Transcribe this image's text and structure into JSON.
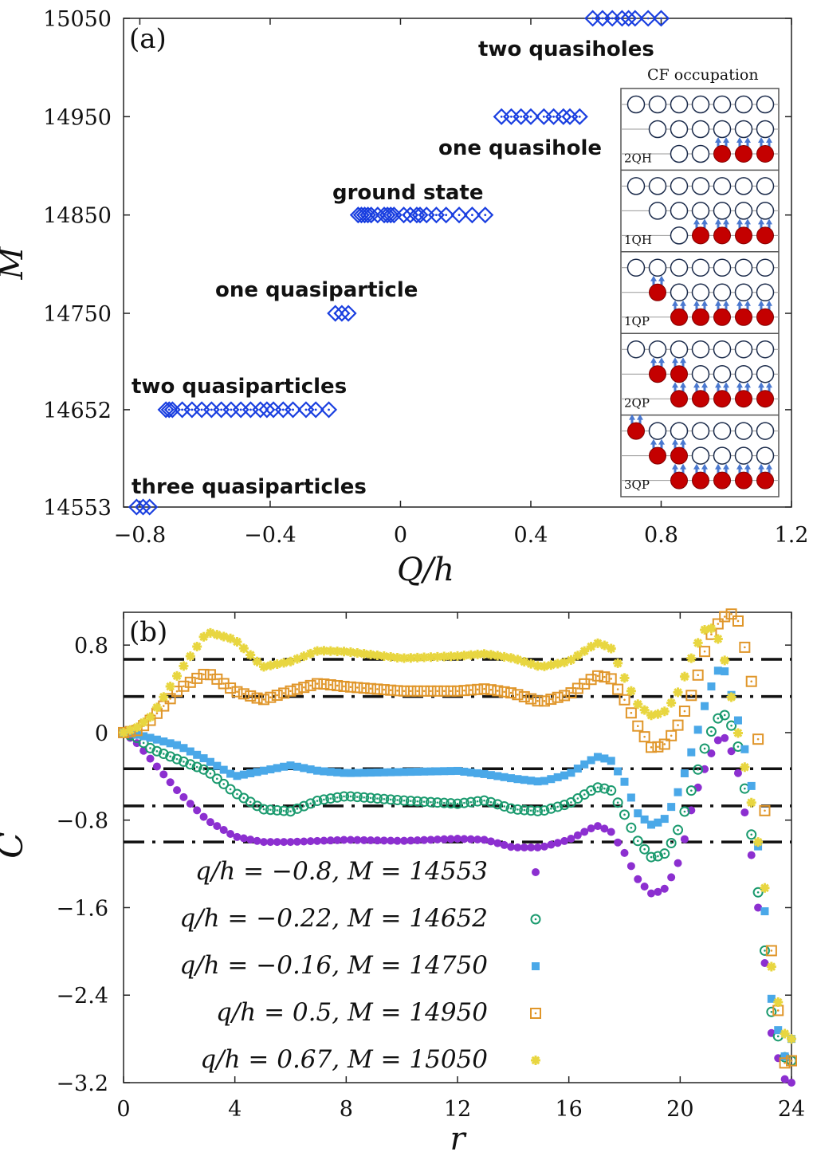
{
  "panel_a": {
    "tag": "(a)",
    "annotations": {
      "two_quasiholes": "two quasiholes",
      "one_quasihole": "one quasihole",
      "ground_state": "ground state",
      "one_quasiparticle": "one quasiparticle",
      "two_quasiparticles": "two quasiparticles",
      "three_quasiparticles": "three quasiparticles"
    },
    "inset": {
      "title": "CF occupation",
      "blocks": [
        {
          "label": "2QH",
          "rows": [
            [
              0,
              0,
              0,
              0,
              0,
              0,
              0
            ],
            [
              null,
              0,
              0,
              0,
              0,
              0,
              0
            ],
            [
              null,
              null,
              0,
              0,
              1,
              1,
              1
            ]
          ]
        },
        {
          "label": "1QH",
          "rows": [
            [
              0,
              0,
              0,
              0,
              0,
              0,
              0
            ],
            [
              null,
              0,
              0,
              0,
              0,
              0,
              0
            ],
            [
              null,
              null,
              0,
              1,
              1,
              1,
              1
            ]
          ]
        },
        {
          "label": "1QP",
          "rows": [
            [
              0,
              0,
              0,
              0,
              0,
              0,
              0
            ],
            [
              null,
              1,
              0,
              0,
              0,
              0,
              0
            ],
            [
              null,
              null,
              1,
              1,
              1,
              1,
              1
            ]
          ]
        },
        {
          "label": "2QP",
          "rows": [
            [
              0,
              0,
              0,
              0,
              0,
              0,
              0
            ],
            [
              null,
              1,
              1,
              0,
              0,
              0,
              0
            ],
            [
              null,
              null,
              1,
              1,
              1,
              1,
              1
            ]
          ]
        },
        {
          "label": "3QP",
          "rows": [
            [
              1,
              0,
              0,
              0,
              0,
              0,
              0
            ],
            [
              null,
              1,
              1,
              0,
              0,
              0,
              0
            ],
            [
              null,
              null,
              1,
              1,
              1,
              1,
              1
            ]
          ]
        }
      ]
    }
  },
  "panel_b": {
    "tag": "(b)",
    "legend": [
      {
        "label": "q/h = −0.8, M = 14553"
      },
      {
        "label": "q/h = −0.22, M = 14652"
      },
      {
        "label": "q/h = −0.16, M = 14750"
      },
      {
        "label": "q/h = 0.5, M = 14950"
      },
      {
        "label": "q/h = 0.67, M = 15050"
      }
    ]
  },
  "chart_data": [
    {
      "type": "scatter",
      "title": "",
      "xlabel": "Q/h",
      "ylabel": "M",
      "xlim": [
        -0.85,
        1.2
      ],
      "ylim": [
        14553,
        15050
      ],
      "xticks": [
        "−0.8",
        "−0.4",
        "0",
        "0.4",
        "0.8",
        "1.2"
      ],
      "yticks": [
        "14553",
        "14652",
        "14750",
        "14850",
        "14950",
        "15050"
      ],
      "ytick_values": [
        14553,
        14652,
        14750,
        14850,
        14950,
        15050
      ],
      "marker_color": "#1a3fe0",
      "series": [
        {
          "name": "three quasiparticles",
          "M": 14553,
          "Q": [
            -0.81,
            -0.79,
            -0.77
          ]
        },
        {
          "name": "two quasiparticles",
          "M": 14652,
          "Q": [
            -0.72,
            -0.71,
            -0.7,
            -0.67,
            -0.64,
            -0.61,
            -0.58,
            -0.55,
            -0.52,
            -0.49,
            -0.46,
            -0.43,
            -0.41,
            -0.39,
            -0.36,
            -0.33,
            -0.29,
            -0.26,
            -0.22
          ]
        },
        {
          "name": "one quasiparticle",
          "M": 14750,
          "Q": [
            -0.2,
            -0.18,
            -0.16
          ]
        },
        {
          "name": "ground state",
          "M": 14850,
          "Q": [
            -0.13,
            -0.12,
            -0.11,
            -0.1,
            -0.09,
            -0.07,
            -0.05,
            -0.04,
            -0.03,
            -0.02,
            0.01,
            0.03,
            0.05,
            0.06,
            0.08,
            0.11,
            0.14,
            0.18,
            0.22,
            0.26
          ]
        },
        {
          "name": "one quasihole",
          "M": 14950,
          "Q": [
            0.31,
            0.34,
            0.37,
            0.4,
            0.44,
            0.47,
            0.5,
            0.52,
            0.55
          ]
        },
        {
          "name": "two quasiholes",
          "M": 15050,
          "Q": [
            0.59,
            0.62,
            0.65,
            0.68,
            0.7,
            0.72,
            0.76,
            0.8
          ]
        }
      ]
    },
    {
      "type": "scatter",
      "title": "",
      "xlabel": "r",
      "ylabel": "C",
      "xlim": [
        0,
        24
      ],
      "ylim": [
        -3.2,
        1.1
      ],
      "xticks": [
        "0",
        "4",
        "8",
        "12",
        "16",
        "20",
        "24"
      ],
      "yticks": [
        "0.8",
        "0",
        "−0.8",
        "−1.6",
        "−2.4",
        "−3.2"
      ],
      "ytick_values": [
        0.8,
        0,
        -0.8,
        -1.6,
        -2.4,
        -3.2
      ],
      "reference_lines": [
        0.67,
        0.33,
        -0.33,
        -0.67,
        -1.0
      ],
      "series": [
        {
          "name": "q/h = −0.8, M = 14553",
          "color": "#8c2fd0",
          "marker": "circle",
          "points": [
            [
              0,
              0
            ],
            [
              0.5,
              -0.1
            ],
            [
              1,
              -0.25
            ],
            [
              2,
              -0.55
            ],
            [
              3,
              -0.8
            ],
            [
              4,
              -0.95
            ],
            [
              5,
              -1.0
            ],
            [
              6,
              -1.0
            ],
            [
              8,
              -0.98
            ],
            [
              10,
              -0.99
            ],
            [
              12,
              -0.97
            ],
            [
              13,
              -0.98
            ],
            [
              14,
              -1.05
            ],
            [
              15,
              -1.05
            ],
            [
              16,
              -0.98
            ],
            [
              17,
              -0.85
            ],
            [
              17.5,
              -0.9
            ],
            [
              18,
              -1.1
            ],
            [
              18.5,
              -1.35
            ],
            [
              19,
              -1.48
            ],
            [
              19.5,
              -1.42
            ],
            [
              20,
              -1.15
            ],
            [
              20.5,
              -0.6
            ],
            [
              21,
              -0.25
            ],
            [
              21.5,
              0
            ],
            [
              22,
              -0.25
            ],
            [
              22.5,
              -1.0
            ],
            [
              23,
              -2.0
            ],
            [
              23.3,
              -2.8
            ],
            [
              23.8,
              -3.2
            ],
            [
              24,
              -3.2
            ]
          ]
        },
        {
          "name": "q/h = −0.22, M = 14652",
          "color": "#1a9a6e",
          "marker": "circle-open-dot",
          "points": [
            [
              0,
              0
            ],
            [
              0.5,
              -0.05
            ],
            [
              1,
              -0.15
            ],
            [
              2,
              -0.25
            ],
            [
              3,
              -0.35
            ],
            [
              4,
              -0.55
            ],
            [
              5,
              -0.7
            ],
            [
              6,
              -0.72
            ],
            [
              7,
              -0.62
            ],
            [
              8,
              -0.58
            ],
            [
              10,
              -0.62
            ],
            [
              12,
              -0.65
            ],
            [
              13,
              -0.62
            ],
            [
              14,
              -0.7
            ],
            [
              15,
              -0.72
            ],
            [
              16,
              -0.65
            ],
            [
              17,
              -0.5
            ],
            [
              17.5,
              -0.52
            ],
            [
              18,
              -0.75
            ],
            [
              18.5,
              -1.0
            ],
            [
              19,
              -1.15
            ],
            [
              19.5,
              -1.1
            ],
            [
              20,
              -0.85
            ],
            [
              20.5,
              -0.45
            ],
            [
              21,
              -0.05
            ],
            [
              21.5,
              0.2
            ],
            [
              22,
              0.0
            ],
            [
              22.5,
              -0.8
            ],
            [
              23,
              -1.9
            ],
            [
              23.3,
              -2.6
            ],
            [
              23.8,
              -3.0
            ],
            [
              24,
              -3.0
            ]
          ]
        },
        {
          "name": "q/h = −0.16, M = 14750",
          "color": "#4aa8e8",
          "marker": "square",
          "points": [
            [
              0,
              0
            ],
            [
              0.5,
              -0.02
            ],
            [
              1,
              -0.05
            ],
            [
              2,
              -0.12
            ],
            [
              3,
              -0.25
            ],
            [
              4,
              -0.4
            ],
            [
              5,
              -0.35
            ],
            [
              6,
              -0.3
            ],
            [
              7,
              -0.35
            ],
            [
              8,
              -0.37
            ],
            [
              10,
              -0.36
            ],
            [
              12,
              -0.35
            ],
            [
              13,
              -0.38
            ],
            [
              14,
              -0.42
            ],
            [
              15,
              -0.45
            ],
            [
              16,
              -0.38
            ],
            [
              17,
              -0.22
            ],
            [
              17.5,
              -0.25
            ],
            [
              18,
              -0.45
            ],
            [
              18.5,
              -0.75
            ],
            [
              19,
              -0.85
            ],
            [
              19.5,
              -0.78
            ],
            [
              20,
              -0.5
            ],
            [
              20.5,
              -0.1
            ],
            [
              21,
              0.35
            ],
            [
              21.5,
              0.65
            ],
            [
              22,
              0.2
            ],
            [
              22.5,
              -0.35
            ],
            [
              23,
              -1.5
            ],
            [
              23.3,
              -2.5
            ],
            [
              23.8,
              -3.0
            ],
            [
              24,
              -2.8
            ]
          ]
        },
        {
          "name": "q/h = 0.5, M = 14950",
          "color": "#e0962a",
          "marker": "square-open-dot",
          "points": [
            [
              0,
              0
            ],
            [
              0.5,
              0.02
            ],
            [
              1,
              0.12
            ],
            [
              2,
              0.4
            ],
            [
              3,
              0.55
            ],
            [
              4,
              0.38
            ],
            [
              5,
              0.3
            ],
            [
              6,
              0.38
            ],
            [
              7,
              0.45
            ],
            [
              8,
              0.42
            ],
            [
              10,
              0.38
            ],
            [
              12,
              0.38
            ],
            [
              13,
              0.4
            ],
            [
              14,
              0.36
            ],
            [
              15,
              0.28
            ],
            [
              16,
              0.35
            ],
            [
              17,
              0.52
            ],
            [
              17.5,
              0.5
            ],
            [
              18,
              0.3
            ],
            [
              18.5,
              0.05
            ],
            [
              19,
              -0.15
            ],
            [
              19.5,
              -0.1
            ],
            [
              20,
              0.1
            ],
            [
              20.5,
              0.4
            ],
            [
              21,
              0.85
            ],
            [
              21.5,
              1.05
            ],
            [
              22,
              1.1
            ],
            [
              22.5,
              0.6
            ],
            [
              23,
              -0.5
            ],
            [
              23.3,
              -2.1
            ],
            [
              23.8,
              -3.1
            ],
            [
              24,
              -3.0
            ]
          ]
        },
        {
          "name": "q/h = 0.67, M = 15050",
          "color": "#e8d640",
          "marker": "star",
          "points": [
            [
              0,
              0
            ],
            [
              0.5,
              0.05
            ],
            [
              1,
              0.15
            ],
            [
              2,
              0.55
            ],
            [
              3,
              0.92
            ],
            [
              4,
              0.85
            ],
            [
              5,
              0.6
            ],
            [
              6,
              0.65
            ],
            [
              7,
              0.75
            ],
            [
              8,
              0.74
            ],
            [
              10,
              0.68
            ],
            [
              12,
              0.7
            ],
            [
              13,
              0.72
            ],
            [
              14,
              0.68
            ],
            [
              15,
              0.6
            ],
            [
              16,
              0.65
            ],
            [
              17,
              0.82
            ],
            [
              17.5,
              0.78
            ],
            [
              18,
              0.5
            ],
            [
              18.5,
              0.25
            ],
            [
              19,
              0.15
            ],
            [
              19.5,
              0.2
            ],
            [
              20,
              0.4
            ],
            [
              20.5,
              0.75
            ],
            [
              21,
              1.0
            ],
            [
              21.5,
              0.8
            ],
            [
              22,
              0.1
            ],
            [
              22.5,
              -0.55
            ],
            [
              23,
              -1.3
            ],
            [
              23.3,
              -2.2
            ],
            [
              23.8,
              -2.8
            ],
            [
              24,
              -2.8
            ]
          ]
        }
      ]
    }
  ]
}
